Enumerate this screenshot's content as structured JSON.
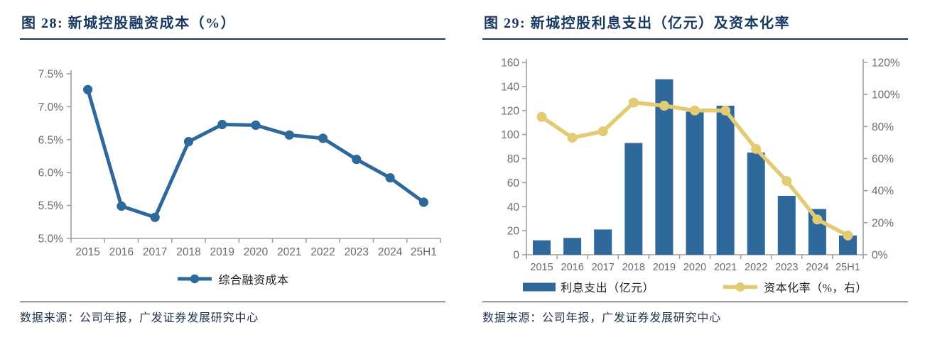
{
  "figure28": {
    "title": "图 28: 新城控股融资成本（%）",
    "legend": [
      {
        "label": "综合融资成本"
      }
    ],
    "source": "数据来源：公司年报，广发证券发展研究中心"
  },
  "figure29": {
    "title": "图 29: 新城控股利息支出（亿元）及资本化率",
    "legend": [
      {
        "label": "利息支出（亿元）"
      },
      {
        "label": "资本化率（%，右）"
      }
    ],
    "source": "数据来源：公司年报，广发证券发展研究中心"
  },
  "colors": {
    "title_navy": "#17375E",
    "series_blue": "#2F689B",
    "series_yellow": "#E3CB74",
    "axis_gray": "#9E9E9E",
    "label_gray": "#6B6B6B"
  },
  "chart_data": [
    {
      "type": "line",
      "title": "新城控股融资成本（%）",
      "categories": [
        "2015",
        "2016",
        "2017",
        "2018",
        "2019",
        "2020",
        "2021",
        "2022",
        "2023",
        "2024",
        "25H1"
      ],
      "series": [
        {
          "name": "综合融资成本",
          "values": [
            7.26,
            5.49,
            5.32,
            6.47,
            6.73,
            6.72,
            6.57,
            6.52,
            6.2,
            5.92,
            5.55
          ],
          "color": "#2F689B"
        }
      ],
      "ylim": [
        5.0,
        7.5
      ],
      "ytick_step": 0.5,
      "ytick_format": "0.0%",
      "grid": false,
      "legend_position": "bottom"
    },
    {
      "type": "bar+line",
      "title": "新城控股利息支出（亿元）及资本化率",
      "categories": [
        "2015",
        "2016",
        "2017",
        "2018",
        "2019",
        "2020",
        "2021",
        "2022",
        "2023",
        "2024",
        "25H1"
      ],
      "series": [
        {
          "name": "利息支出（亿元）",
          "type": "bar",
          "axis": "left",
          "values": [
            12,
            14,
            21,
            93,
            146,
            119,
            124,
            85,
            49,
            38,
            16
          ],
          "color": "#2F689B"
        },
        {
          "name": "资本化率（%，右）",
          "type": "line",
          "axis": "right",
          "values": [
            86,
            73,
            77,
            95,
            93,
            90,
            90,
            66,
            46,
            22,
            12
          ],
          "color": "#E3CB74"
        }
      ],
      "left_ylim": [
        0,
        160
      ],
      "left_ytick_step": 20,
      "right_ylim": [
        0,
        120
      ],
      "right_ytick_step": 20,
      "right_ytick_format": "0%",
      "grid": false,
      "legend_position": "bottom"
    }
  ]
}
